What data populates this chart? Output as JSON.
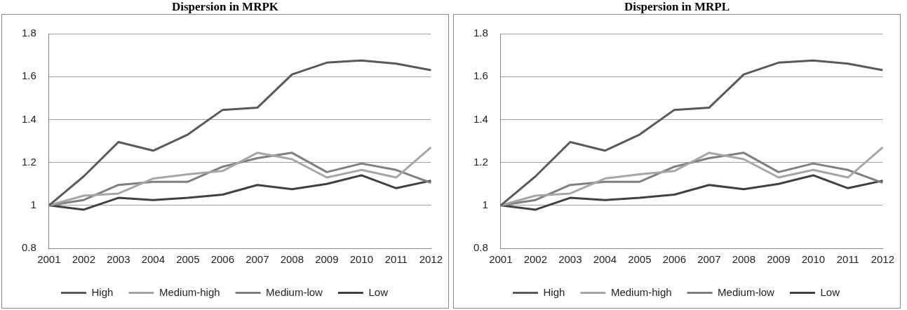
{
  "chart_data": [
    {
      "type": "line",
      "title": "Dispersion in MRPK",
      "categories": [
        "2001",
        "2002",
        "2003",
        "2004",
        "2005",
        "2006",
        "2007",
        "2008",
        "2009",
        "2010",
        "2011",
        "2012"
      ],
      "ylim": [
        0.8,
        1.8
      ],
      "yticks": [
        0.8,
        1,
        1.2,
        1.4,
        1.6,
        1.8
      ],
      "grid": "y",
      "legend": "bottom",
      "marker": "none",
      "series": [
        {
          "name": "High",
          "color": "#595959",
          "values": [
            1,
            1.135,
            1.295,
            1.255,
            1.33,
            1.445,
            1.455,
            1.61,
            1.665,
            1.675,
            1.66,
            1.63
          ]
        },
        {
          "name": "Medium-high",
          "color": "#a6a6a6",
          "values": [
            1,
            1.045,
            1.055,
            1.125,
            1.145,
            1.16,
            1.245,
            1.215,
            1.13,
            1.165,
            1.13,
            1.27
          ]
        },
        {
          "name": "Medium-low",
          "color": "#7f7f7f",
          "values": [
            1,
            1.025,
            1.095,
            1.11,
            1.11,
            1.18,
            1.22,
            1.245,
            1.155,
            1.195,
            1.165,
            1.105
          ]
        },
        {
          "name": "Low",
          "color": "#404040",
          "values": [
            1,
            0.98,
            1.035,
            1.025,
            1.035,
            1.05,
            1.095,
            1.075,
            1.1,
            1.14,
            1.08,
            1.115
          ]
        }
      ]
    },
    {
      "type": "line",
      "title": "Dispersion in MRPL",
      "categories": [
        "2001",
        "2002",
        "2003",
        "2004",
        "2005",
        "2006",
        "2007",
        "2008",
        "2009",
        "2010",
        "2011",
        "2012"
      ],
      "ylim": [
        0.8,
        1.8
      ],
      "yticks": [
        0.8,
        1,
        1.2,
        1.4,
        1.6,
        1.8
      ],
      "grid": "y",
      "legend": "bottom",
      "marker": "none",
      "series": [
        {
          "name": "High",
          "color": "#595959",
          "values": [
            1,
            1.135,
            1.295,
            1.255,
            1.33,
            1.445,
            1.455,
            1.61,
            1.665,
            1.675,
            1.66,
            1.63
          ]
        },
        {
          "name": "Medium-high",
          "color": "#a6a6a6",
          "values": [
            1,
            1.045,
            1.055,
            1.125,
            1.145,
            1.16,
            1.245,
            1.215,
            1.13,
            1.165,
            1.13,
            1.27
          ]
        },
        {
          "name": "Medium-low",
          "color": "#7f7f7f",
          "values": [
            1,
            1.025,
            1.095,
            1.11,
            1.11,
            1.18,
            1.22,
            1.245,
            1.155,
            1.195,
            1.165,
            1.105
          ]
        },
        {
          "name": "Low",
          "color": "#404040",
          "values": [
            1,
            0.98,
            1.035,
            1.025,
            1.035,
            1.05,
            1.095,
            1.075,
            1.1,
            1.14,
            1.08,
            1.115
          ]
        }
      ]
    }
  ]
}
